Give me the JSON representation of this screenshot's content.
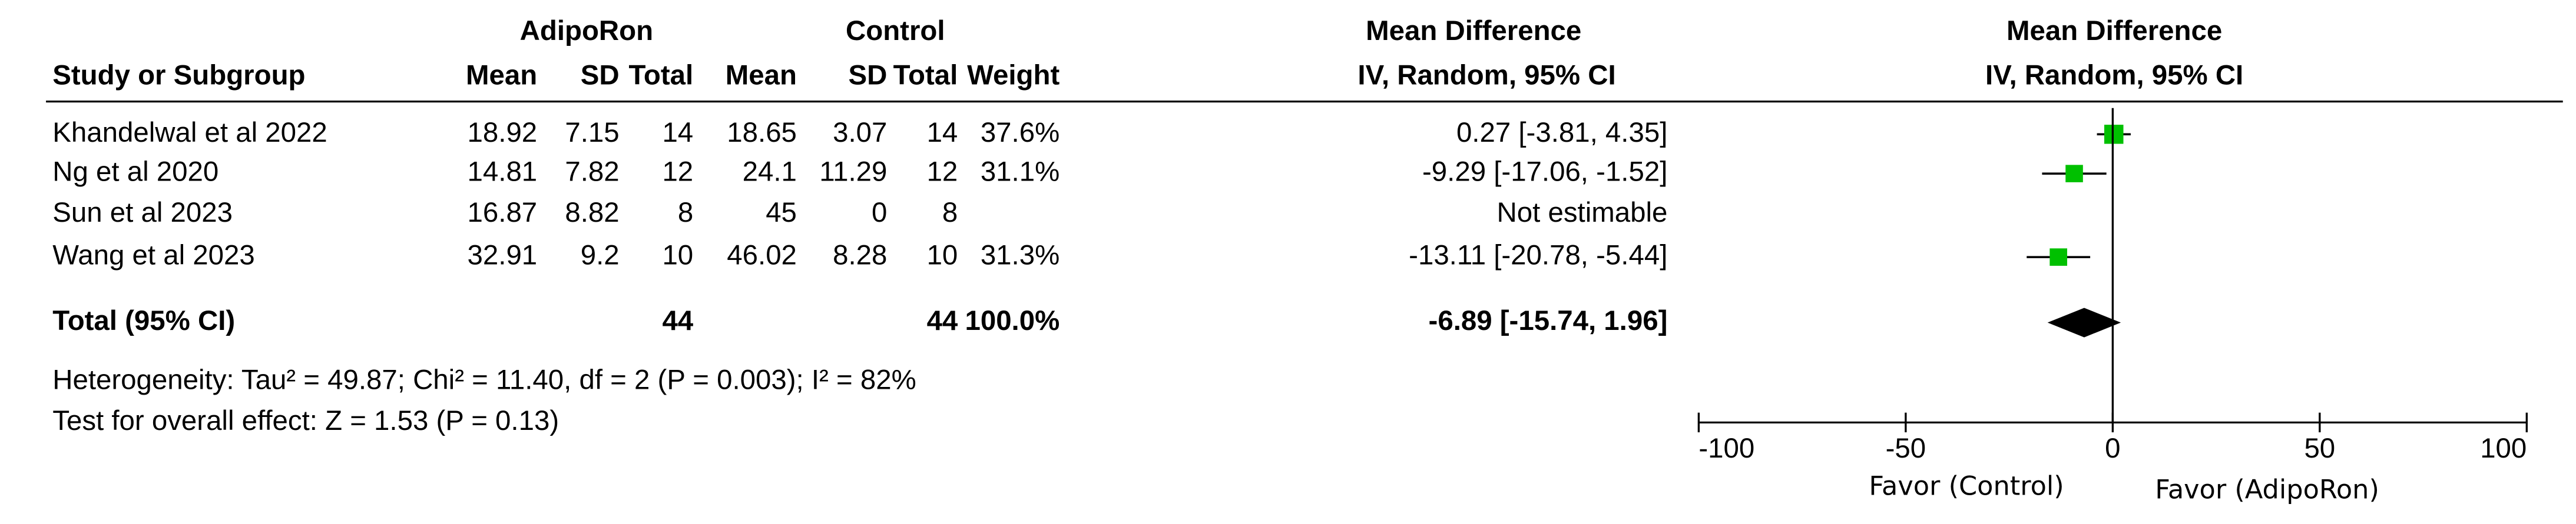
{
  "chart_data": {
    "type": "forest",
    "group_labels": [
      "AdipoRon",
      "Control"
    ],
    "column_headers": [
      "Study or Subgroup",
      "Mean",
      "SD",
      "Total",
      "Mean",
      "SD",
      "Total",
      "Weight",
      "Mean Difference",
      "IV, Random, 95% CI"
    ],
    "plot_headers": [
      "Mean Difference",
      "IV, Random, 95% CI"
    ],
    "studies": [
      "Khandelwal et al 2022",
      "Ng et al 2020",
      "Sun et al 2023",
      "Wang et al 2023"
    ],
    "adiporon": {
      "mean": [
        18.92,
        14.81,
        16.87,
        32.91
      ],
      "sd": [
        7.15,
        7.82,
        8.82,
        9.2
      ],
      "total": [
        14,
        12,
        8,
        10
      ]
    },
    "control": {
      "mean": [
        18.65,
        24.1,
        45,
        46.02
      ],
      "sd": [
        3.07,
        11.29,
        0,
        8.28
      ],
      "total": [
        14,
        12,
        8,
        10
      ]
    },
    "weights": [
      37.6,
      31.1,
      null,
      31.3
    ],
    "weight_labels": [
      "37.6%",
      "31.1%",
      null,
      "31.3%"
    ],
    "values": [
      0.27,
      -9.29,
      null,
      -13.11
    ],
    "ci_low": [
      -3.81,
      -17.06,
      null,
      -20.78
    ],
    "ci_high": [
      4.35,
      -1.52,
      null,
      -5.44
    ],
    "value_labels": [
      "0.27 [-3.81, 4.35]",
      "-9.29 [-17.06, -1.52]",
      "Not estimable",
      "-13.11 [-20.78, -5.44]"
    ],
    "total": {
      "label": "Total (95% CI)",
      "adiporon_total": 44,
      "control_total": 44,
      "weight_label": "100.0%",
      "value": -6.89,
      "ci_low": -15.74,
      "ci_high": 1.96,
      "value_label": "-6.89 [-15.74, 1.96]"
    },
    "heterogeneity": "Heterogeneity: Tau² = 49.87; Chi² = 11.40, df = 2 (P = 0.003); I² = 82%",
    "overall_effect": "Test for overall effect: Z = 1.53 (P = 0.13)",
    "xlim": [
      -100,
      100
    ],
    "xticks": [
      -100,
      -50,
      0,
      50,
      100
    ],
    "favor_labels": [
      "Favor (Control)",
      "Favor (AdipoRon)"
    ],
    "marker_color": "#00c000",
    "diamond_color": "#000000"
  }
}
